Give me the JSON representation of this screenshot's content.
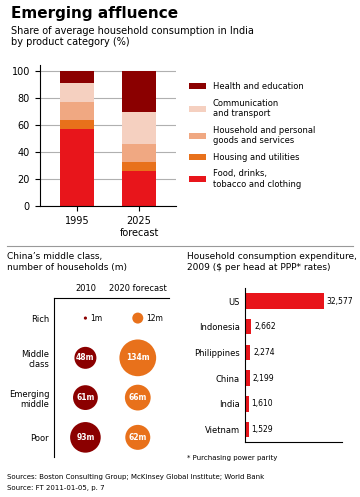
{
  "title": "Emerging affluence",
  "subtitle": "Share of average household consumption in India\nby product category (%)",
  "annotations": [
    "Sources: Boston Consulting Group; McKinsey Global Institute; World Bank",
    "Source: FT 2011-01-05, p. 7"
  ],
  "chart_data": [
    {
      "type": "bar",
      "stacked": true,
      "categories": [
        "1995",
        "2025\nforecast"
      ],
      "series": [
        {
          "name": "Food, drinks,\ntobacco and clothing",
          "color": "#e8151b",
          "values": [
            57,
            26
          ]
        },
        {
          "name": "Housing and utilities",
          "color": "#e8711b",
          "values": [
            7,
            7
          ]
        },
        {
          "name": "Household and personal\ngoods and services",
          "color": "#f0a882",
          "values": [
            13,
            13
          ]
        },
        {
          "name": "Communication\nand transport",
          "color": "#f5d0c0",
          "values": [
            14,
            24
          ]
        },
        {
          "name": "Health and education",
          "color": "#8b0000",
          "values": [
            9,
            30
          ]
        }
      ],
      "ylim": [
        0,
        105
      ],
      "yticks": [
        0,
        20,
        40,
        60,
        80,
        100
      ],
      "grid": true,
      "legend": "right"
    },
    {
      "type": "bubble",
      "title": "China’s middle class,\nnumber of households (m)",
      "categories": [
        "Rich",
        "Middle\nclass",
        "Emerging\nmiddle",
        "Poor"
      ],
      "series": [
        {
          "name": "2010",
          "color": "#8b0000",
          "values": [
            1,
            48,
            61,
            93
          ],
          "value_labels": [
            "1m",
            "48m",
            "61m",
            "93m"
          ]
        },
        {
          "name": "2020 forecast",
          "color": "#e8711b",
          "values": [
            12,
            134,
            66,
            62
          ],
          "value_labels": [
            "12m",
            "134m",
            "66m",
            "62m"
          ]
        }
      ],
      "data_labels": true
    },
    {
      "type": "bar",
      "orientation": "horizontal",
      "title": "Household consumption expenditure,\n2009 ($ per head at PPP* rates)",
      "categories": [
        "US",
        "Indonesia",
        "Philippines",
        "China",
        "India",
        "Vietnam"
      ],
      "values": [
        32577,
        2662,
        2274,
        2199,
        1610,
        1529
      ],
      "value_labels": [
        "32,577",
        "2,662",
        "2,274",
        "2,199",
        "1,610",
        "1,529"
      ],
      "color": "#e8151b",
      "xlim": [
        0,
        40000
      ],
      "data_labels": true,
      "tick_labels": "y",
      "annotations": [
        "* Purchasing power parity"
      ]
    }
  ]
}
